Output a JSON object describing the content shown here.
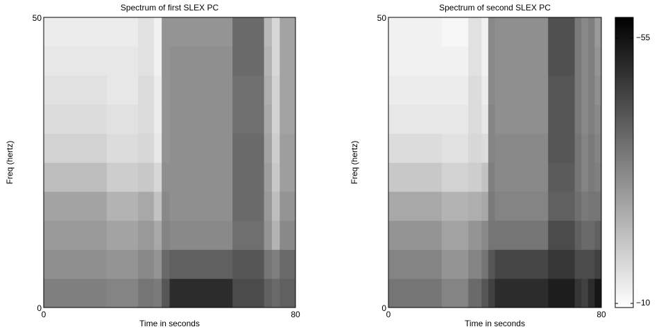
{
  "chart_data": [
    {
      "type": "heatmap",
      "title": "Spectrum of first SLEX PC",
      "xlabel": "Time in seconds",
      "ylabel": "Freq (hertz)",
      "x": [
        0,
        20,
        30,
        35,
        37.5,
        40,
        60,
        70,
        72.5,
        75,
        80
      ],
      "y": [
        0,
        5,
        10,
        15,
        20,
        25,
        30,
        35,
        40,
        45,
        50
      ],
      "values": [
        [
          -34,
          -31,
          -29,
          -27,
          -22,
          -18,
          -16,
          -15,
          -14,
          -13
        ],
        [
          -33,
          -30,
          -27,
          -24,
          -19,
          -16,
          -15,
          -14,
          -14,
          -13
        ],
        [
          -36,
          -32,
          -29,
          -26,
          -20,
          -17,
          -16,
          -16,
          -15,
          -15
        ],
        [
          -35,
          -30,
          -26,
          -21,
          -17,
          -14,
          -13,
          -13,
          -12,
          -12
        ],
        [
          -42,
          -38,
          -33,
          -32,
          -31,
          -30,
          -30,
          -30,
          -30,
          -30
        ],
        [
          -50,
          -40,
          -32,
          -31,
          -31,
          -31,
          -31,
          -31,
          -31,
          -30
        ],
        [
          -44,
          -42,
          -37,
          -38,
          -38,
          -38,
          -37,
          -37,
          -38,
          -38
        ],
        [
          -40,
          -36,
          -30,
          -29,
          -28,
          -27,
          -26,
          -25,
          -24,
          -23
        ],
        [
          -38,
          -34,
          -24,
          -22,
          -20,
          -19,
          -18,
          -18,
          -17,
          -17
        ],
        [
          -40,
          -38,
          -32,
          -30,
          -28,
          -28,
          -27,
          -27,
          -27,
          -27
        ]
      ],
      "xlim": [
        0,
        80
      ],
      "ylim": [
        0,
        50
      ],
      "xticks": [
        0,
        80
      ],
      "yticks": [
        0,
        50
      ]
    },
    {
      "type": "heatmap",
      "title": "Spectrum of second SLEX PC",
      "xlabel": "Time in seconds",
      "ylabel": "Freq (hertz)",
      "x": [
        0,
        20,
        30,
        35,
        37.5,
        40,
        60,
        70,
        72.5,
        75,
        77.5,
        80
      ],
      "y": [
        0,
        5,
        10,
        15,
        20,
        25,
        30,
        35,
        40,
        45,
        50
      ],
      "values": [
        [
          -36,
          -33,
          -30,
          -26,
          -20,
          -16,
          -14,
          -13,
          -12,
          -12
        ],
        [
          -33,
          -30,
          -27,
          -24,
          -18,
          -15,
          -14,
          -13,
          -12,
          -11
        ],
        [
          -38,
          -33,
          -30,
          -25,
          -19,
          -17,
          -16,
          -16,
          -15,
          -15
        ],
        [
          -42,
          -36,
          -32,
          -26,
          -21,
          -16,
          -14,
          -13,
          -12,
          -12
        ],
        [
          -46,
          -42,
          -36,
          -35,
          -34,
          -33,
          -33,
          -32,
          -32,
          -32
        ],
        [
          -50,
          -45,
          -36,
          -33,
          -32,
          -32,
          -31,
          -31,
          -31,
          -31
        ],
        [
          -53,
          -48,
          -44,
          -40,
          -41,
          -42,
          -42,
          -42,
          -43,
          -43
        ],
        [
          -48,
          -44,
          -40,
          -37,
          -36,
          -36,
          -35,
          -35,
          -35,
          -35
        ],
        [
          -46,
          -44,
          -38,
          -35,
          -33,
          -33,
          -32,
          -32,
          -32,
          -32
        ],
        [
          -50,
          -44,
          -38,
          -36,
          -35,
          -35,
          -34,
          -34,
          -34,
          -34
        ],
        [
          -54,
          -46,
          -40,
          -36,
          -34,
          -33,
          -32,
          -31,
          -30,
          -29
        ]
      ],
      "xlim": [
        0,
        80
      ],
      "ylim": [
        0,
        50
      ],
      "xticks": [
        0,
        80
      ],
      "yticks": [
        0,
        50
      ],
      "colorbar": {
        "lim": [
          -9.3,
          -58.5
        ],
        "ticks": [
          {
            "value": -55,
            "label": "−55"
          },
          {
            "value": -10,
            "label": "−10"
          }
        ]
      }
    }
  ]
}
